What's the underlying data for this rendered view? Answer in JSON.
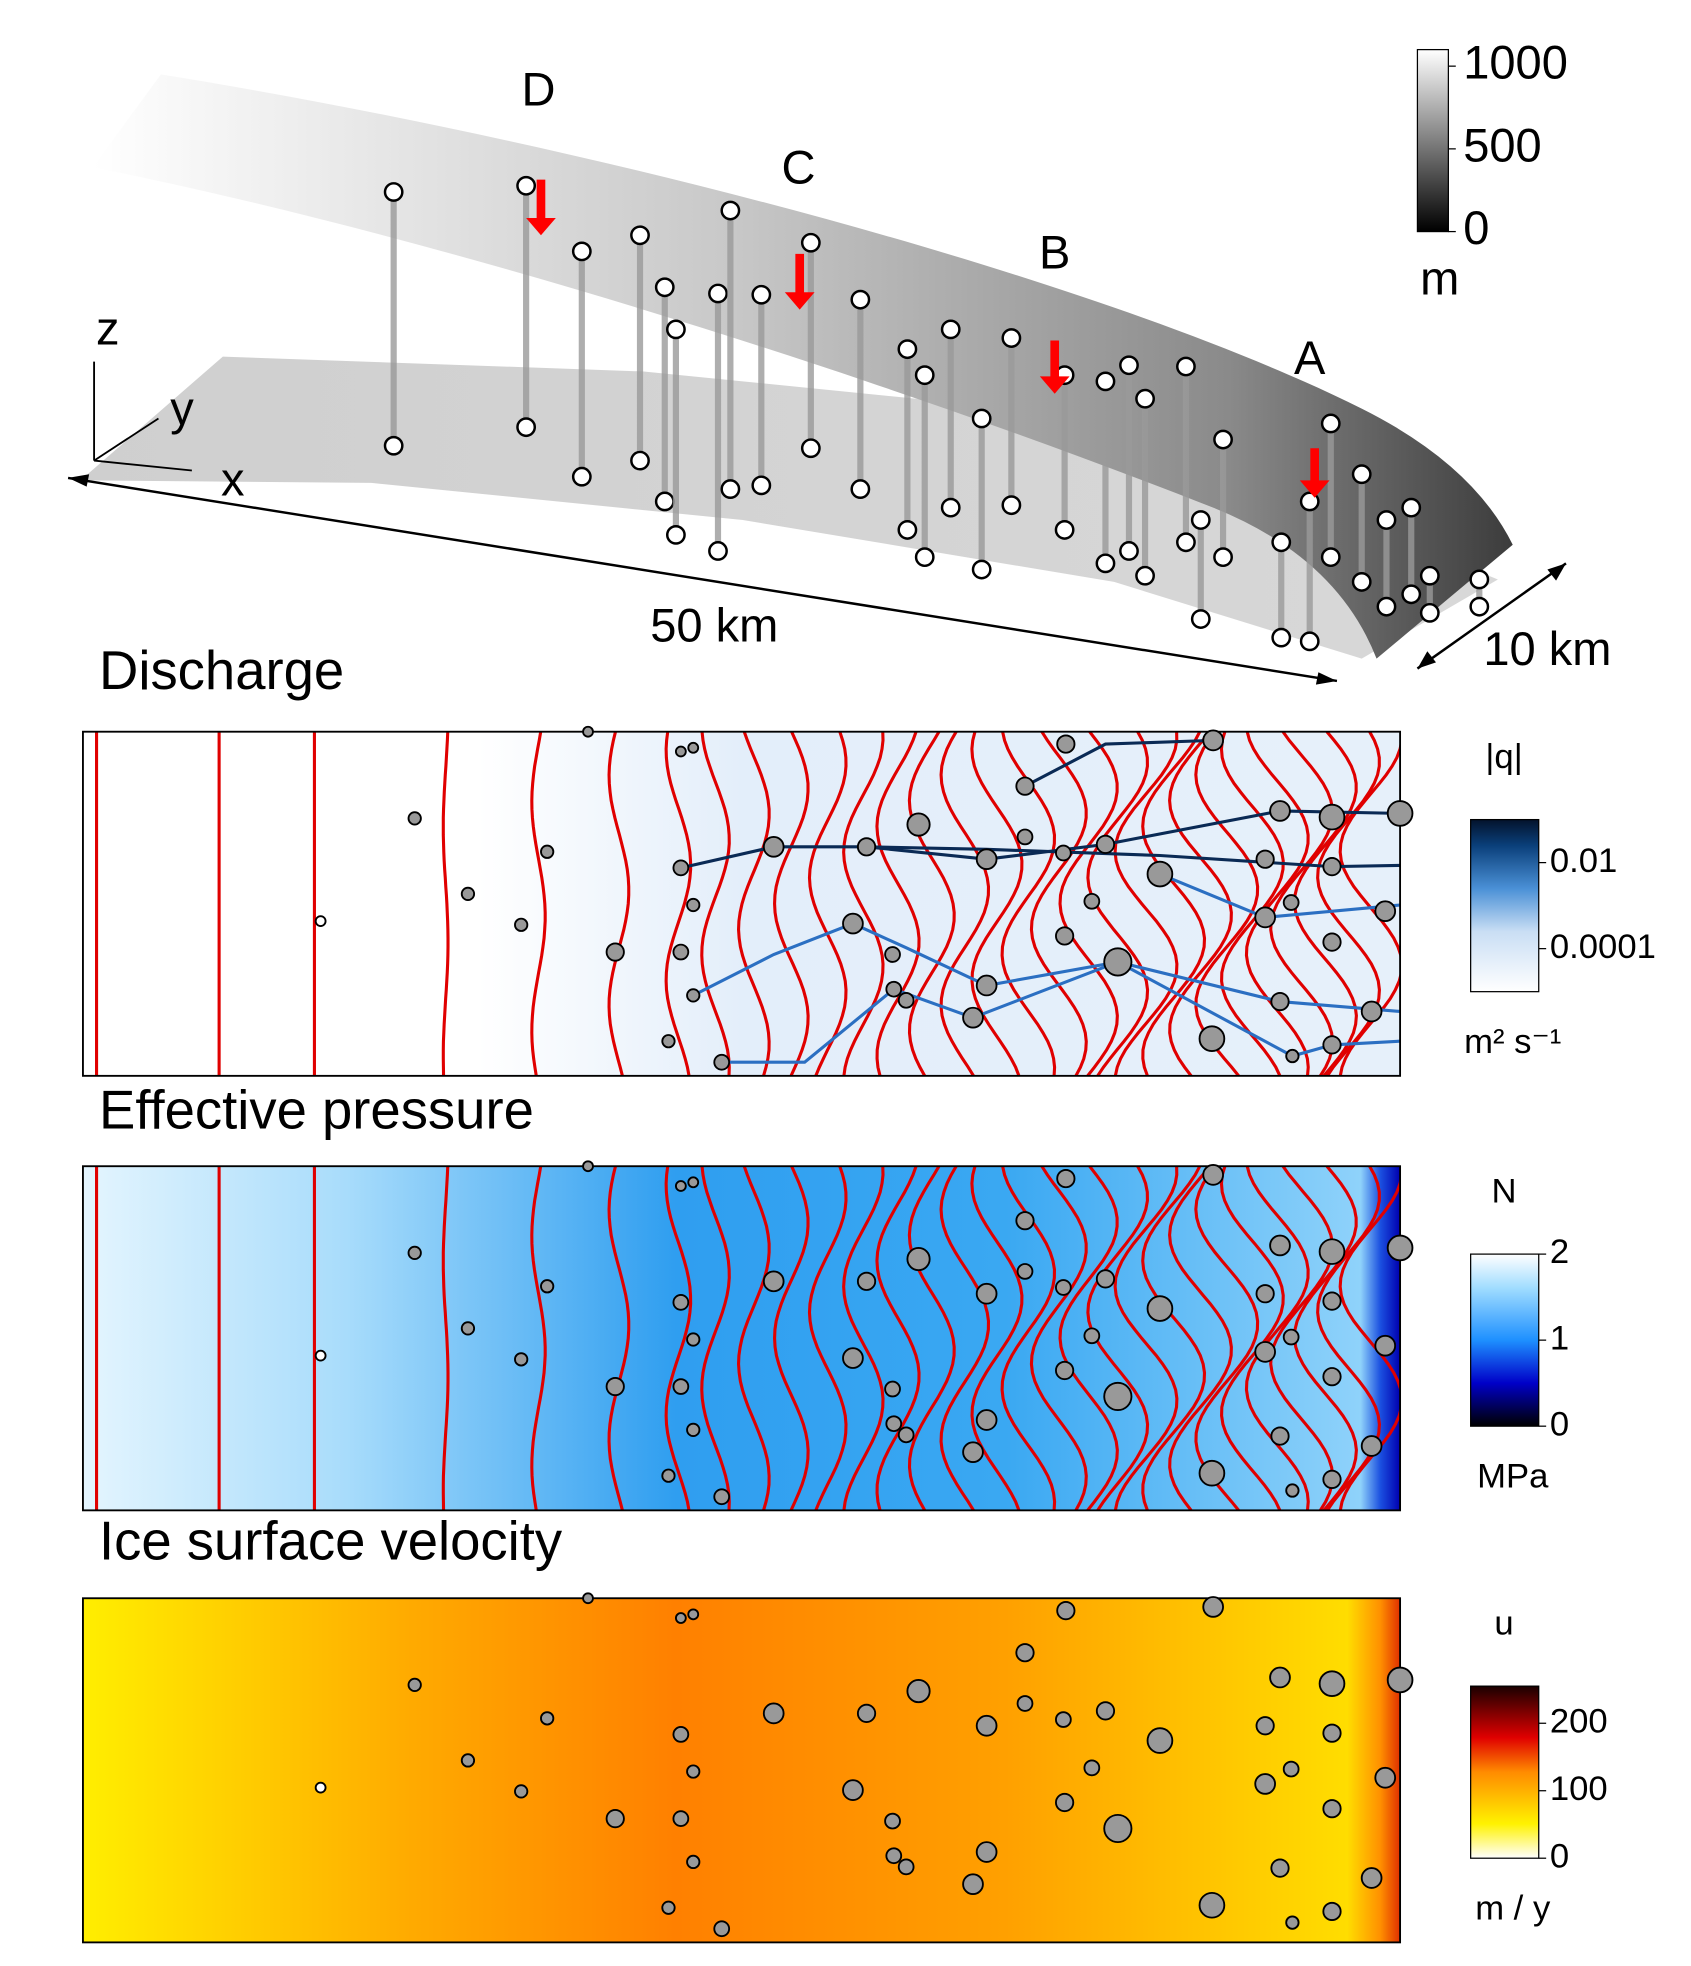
{
  "figure": {
    "overview": {
      "labels": [
        "D",
        "C",
        "B",
        "A"
      ],
      "axes": [
        "z",
        "y",
        "x"
      ],
      "length": "50 km",
      "width": "10 km",
      "colorbar": {
        "lim": [
          0,
          1100
        ],
        "ticks": [
          1000,
          500,
          0
        ],
        "unit": "m"
      }
    },
    "panels": [
      {
        "title": "Discharge",
        "colorbar": {
          "label": "|q|",
          "log": true,
          "lim": [
            1e-05,
            0.1
          ],
          "ticks": [
            0.01,
            0.0001
          ],
          "unit": "m² s⁻¹"
        }
      },
      {
        "title": "Effective pressure",
        "colorbar": {
          "label": "N",
          "log": false,
          "lim": [
            0,
            2
          ],
          "ticks": [
            2,
            1,
            0
          ],
          "unit": "MPa"
        }
      },
      {
        "title": "Ice surface velocity",
        "colorbar": {
          "label": "u",
          "log": false,
          "lim": [
            0,
            255
          ],
          "ticks": [
            200,
            100,
            0
          ],
          "unit": "m / y"
        }
      }
    ]
  }
}
